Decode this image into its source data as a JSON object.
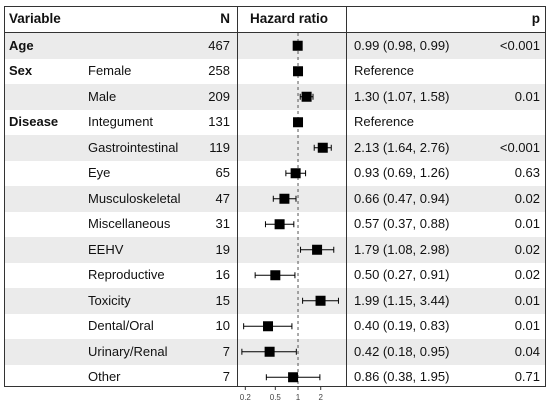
{
  "header": {
    "variable": "Variable",
    "n": "N",
    "hazard_ratio": "Hazard ratio",
    "p": "p"
  },
  "rows": [
    {
      "group": "Age",
      "level": "",
      "n": "467",
      "ci_text": "0.99 (0.98, 0.99)",
      "p": "<0.001"
    },
    {
      "group": "Sex",
      "level": "Female",
      "n": "258",
      "ci_text": "Reference",
      "p": ""
    },
    {
      "group": "",
      "level": "Male",
      "n": "209",
      "ci_text": "1.30 (1.07, 1.58)",
      "p": "0.01"
    },
    {
      "group": "Disease",
      "level": "Integument",
      "n": "131",
      "ci_text": "Reference",
      "p": ""
    },
    {
      "group": "",
      "level": "Gastrointestinal",
      "n": "119",
      "ci_text": "2.13 (1.64, 2.76)",
      "p": "<0.001"
    },
    {
      "group": "",
      "level": "Eye",
      "n": "65",
      "ci_text": "0.93 (0.69, 1.26)",
      "p": "0.63"
    },
    {
      "group": "",
      "level": "Musculoskeletal",
      "n": "47",
      "ci_text": "0.66 (0.47, 0.94)",
      "p": "0.02"
    },
    {
      "group": "",
      "level": "Miscellaneous",
      "n": "31",
      "ci_text": "0.57 (0.37, 0.88)",
      "p": "0.01"
    },
    {
      "group": "",
      "level": "EEHV",
      "n": "19",
      "ci_text": "1.79 (1.08, 2.98)",
      "p": "0.02"
    },
    {
      "group": "",
      "level": "Reproductive",
      "n": "16",
      "ci_text": "0.50 (0.27, 0.91)",
      "p": "0.02"
    },
    {
      "group": "",
      "level": "Toxicity",
      "n": "15",
      "ci_text": "1.99 (1.15, 3.44)",
      "p": "0.01"
    },
    {
      "group": "",
      "level": "Dental/Oral",
      "n": "10",
      "ci_text": "0.40 (0.19, 0.83)",
      "p": "0.01"
    },
    {
      "group": "",
      "level": "Urinary/Renal",
      "n": "7",
      "ci_text": "0.42 (0.18, 0.95)",
      "p": "0.04"
    },
    {
      "group": "",
      "level": "Other",
      "n": "7",
      "ci_text": "0.86 (0.38, 1.95)",
      "p": "0.71"
    }
  ],
  "chart_data": {
    "type": "forest",
    "x_scale": "log",
    "xlim": [
      0.17,
      4.2
    ],
    "reference_line": 1,
    "x_ticks": [
      0.2,
      0.5,
      1,
      2
    ],
    "x_tick_labels": [
      "0.2",
      "0.5",
      "1",
      "2"
    ],
    "grid": false,
    "points": [
      {
        "label": "Age",
        "hr": 0.99,
        "lo": 0.98,
        "hi": 0.99
      },
      {
        "label": "Female",
        "hr": 1.0,
        "lo": null,
        "hi": null,
        "reference": true
      },
      {
        "label": "Male",
        "hr": 1.3,
        "lo": 1.07,
        "hi": 1.58
      },
      {
        "label": "Integument",
        "hr": 1.0,
        "lo": null,
        "hi": null,
        "reference": true
      },
      {
        "label": "Gastrointestinal",
        "hr": 2.13,
        "lo": 1.64,
        "hi": 2.76
      },
      {
        "label": "Eye",
        "hr": 0.93,
        "lo": 0.69,
        "hi": 1.26
      },
      {
        "label": "Musculoskeletal",
        "hr": 0.66,
        "lo": 0.47,
        "hi": 0.94
      },
      {
        "label": "Miscellaneous",
        "hr": 0.57,
        "lo": 0.37,
        "hi": 0.88
      },
      {
        "label": "EEHV",
        "hr": 1.79,
        "lo": 1.08,
        "hi": 2.98
      },
      {
        "label": "Reproductive",
        "hr": 0.5,
        "lo": 0.27,
        "hi": 0.91
      },
      {
        "label": "Toxicity",
        "hr": 1.99,
        "lo": 1.15,
        "hi": 3.44
      },
      {
        "label": "Dental/Oral",
        "hr": 0.4,
        "lo": 0.19,
        "hi": 0.83
      },
      {
        "label": "Urinary/Renal",
        "hr": 0.42,
        "lo": 0.18,
        "hi": 0.95
      },
      {
        "label": "Other",
        "hr": 0.86,
        "lo": 0.38,
        "hi": 1.95
      }
    ],
    "colors": {
      "stripe": "#ebebeb",
      "marker": "#000000",
      "line": "#333333"
    }
  }
}
